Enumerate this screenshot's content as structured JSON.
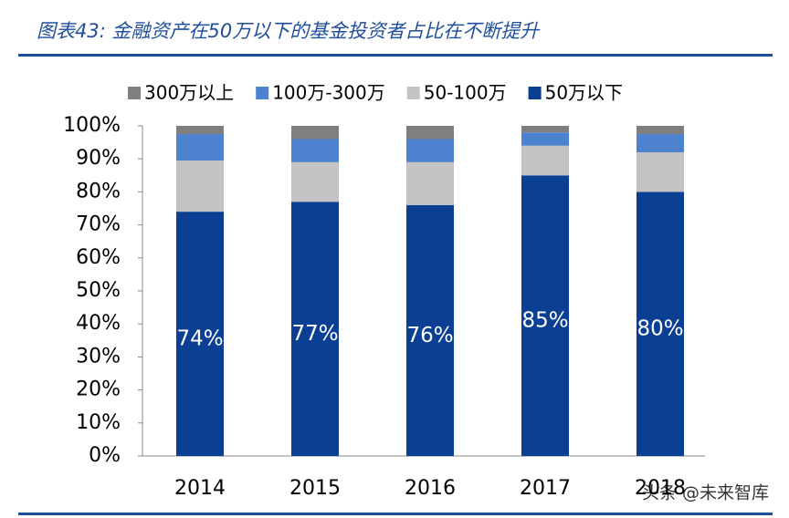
{
  "chart_data": {
    "type": "stacked_bar",
    "title": "图表43: 金融资产在50万以下的基金投资者占比在不断提升",
    "categories": [
      "2014",
      "2015",
      "2016",
      "2017",
      "2018"
    ],
    "series": [
      {
        "name": "50万以下",
        "color": "#0b3f94",
        "values": [
          74,
          77,
          76,
          85,
          80
        ],
        "value_labels": [
          "74%",
          "77%",
          "76%",
          "85%",
          "80%"
        ]
      },
      {
        "name": "50-100万",
        "color": "#c3c3c3",
        "values": [
          15.5,
          12,
          13,
          9,
          12
        ]
      },
      {
        "name": "100万-300万",
        "color": "#4d82cf",
        "values": [
          8,
          7,
          7,
          4,
          5.5
        ]
      },
      {
        "name": "300万以上",
        "color": "#7f7f7f",
        "values": [
          2.5,
          4,
          4,
          2,
          2.5
        ]
      }
    ],
    "ylim": [
      0,
      100
    ],
    "yticks": [
      {
        "value": 0,
        "label": "0%"
      },
      {
        "value": 10,
        "label": "10%"
      },
      {
        "value": 20,
        "label": "20%"
      },
      {
        "value": 30,
        "label": "30%"
      },
      {
        "value": 40,
        "label": "40%"
      },
      {
        "value": 50,
        "label": "50%"
      },
      {
        "value": 60,
        "label": "60%"
      },
      {
        "value": 70,
        "label": "70%"
      },
      {
        "value": 80,
        "label": "80%"
      },
      {
        "value": 90,
        "label": "90%"
      },
      {
        "value": 100,
        "label": "100%"
      }
    ],
    "grid": false,
    "watermark": "头条 @未来智库"
  }
}
